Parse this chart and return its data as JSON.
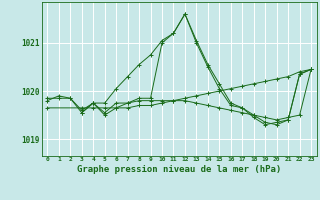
{
  "bg_color": "#c8e8e8",
  "grid_color": "#ffffff",
  "line_color": "#1a6b1a",
  "xlabel": "Graphe pression niveau de la mer (hPa)",
  "xlabel_fontsize": 6.5,
  "ylabel_ticks": [
    1019,
    1020,
    1021
  ],
  "ytick_labels": [
    "1019",
    "1020",
    "1021"
  ],
  "xlim": [
    -0.5,
    23.5
  ],
  "ylim": [
    1018.65,
    1021.85
  ],
  "series": [
    {
      "x": [
        0,
        1,
        2,
        3,
        4,
        5,
        6,
        7,
        8,
        9,
        10,
        11,
        12,
        13,
        14,
        15,
        16,
        17,
        18,
        19,
        20,
        21,
        22,
        23
      ],
      "y": [
        1019.8,
        1019.9,
        1019.85,
        1019.6,
        1019.75,
        1019.75,
        1020.05,
        1020.3,
        1020.55,
        1020.75,
        1021.05,
        1021.2,
        1021.6,
        1021.05,
        1020.55,
        1020.15,
        1019.75,
        1019.65,
        1019.5,
        1019.35,
        1019.3,
        1019.4,
        1020.35,
        1020.45
      ]
    },
    {
      "x": [
        0,
        1,
        2,
        3,
        4,
        5,
        6,
        7,
        8,
        9,
        10,
        11,
        12,
        13,
        14,
        15,
        16,
        17,
        18,
        19,
        20,
        21,
        22,
        23
      ],
      "y": [
        1019.85,
        1019.85,
        1019.85,
        1019.55,
        1019.75,
        1019.55,
        1019.75,
        1019.75,
        1019.8,
        1019.8,
        1019.8,
        1019.8,
        1019.8,
        1019.75,
        1019.7,
        1019.65,
        1019.6,
        1019.55,
        1019.5,
        1019.45,
        1019.4,
        1019.45,
        1019.5,
        1020.45
      ]
    },
    {
      "x": [
        0,
        3,
        4,
        5,
        6,
        7,
        8,
        9,
        10,
        11,
        12,
        13,
        14,
        15,
        16,
        17,
        18,
        19,
        20,
        21,
        22,
        23
      ],
      "y": [
        1019.65,
        1019.65,
        1019.65,
        1019.65,
        1019.65,
        1019.65,
        1019.7,
        1019.7,
        1019.75,
        1019.8,
        1019.85,
        1019.9,
        1019.95,
        1020.0,
        1020.05,
        1020.1,
        1020.15,
        1020.2,
        1020.25,
        1020.3,
        1020.4,
        1020.45
      ]
    },
    {
      "x": [
        3,
        4,
        5,
        6,
        7,
        8,
        9,
        10,
        11,
        12,
        13,
        14,
        15,
        16,
        17,
        18,
        19,
        20,
        21,
        22,
        23
      ],
      "y": [
        1019.55,
        1019.75,
        1019.5,
        1019.65,
        1019.75,
        1019.85,
        1019.85,
        1021.0,
        1021.2,
        1021.6,
        1021.0,
        1020.5,
        1020.05,
        1019.7,
        1019.65,
        1019.45,
        1019.3,
        1019.35,
        1019.4,
        1020.35,
        1020.45
      ]
    }
  ]
}
